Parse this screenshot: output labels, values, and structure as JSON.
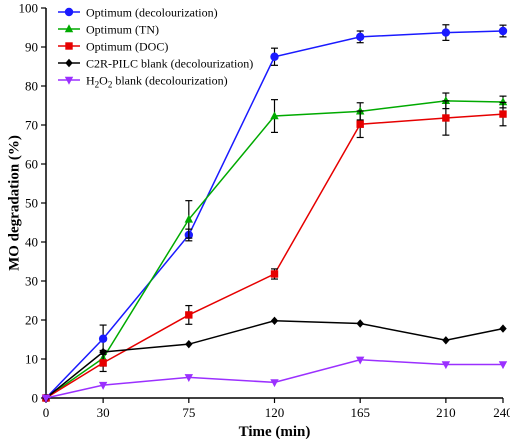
{
  "chart_data": {
    "type": "line",
    "xlabel": "Time (min)",
    "ylabel": "MO degradation (%)",
    "x_ticks": [
      0,
      30,
      75,
      120,
      165,
      210,
      240
    ],
    "y_ticks": [
      0,
      10,
      20,
      30,
      40,
      50,
      60,
      70,
      80,
      90,
      100
    ],
    "xlim": [
      0,
      240
    ],
    "ylim": [
      0,
      100
    ],
    "grid": false,
    "legend_position": "top-left",
    "series": [
      {
        "name": "Optimum (decolourization)",
        "name_sub": "",
        "name_tail": "",
        "color": "#1a1aff",
        "marker": "circle",
        "x": [
          0,
          30,
          75,
          120,
          165,
          210,
          240
        ],
        "y": [
          0,
          15.2,
          41.8,
          87.5,
          92.6,
          93.7,
          94.1
        ],
        "err": [
          0,
          3.5,
          1.5,
          2.2,
          1.5,
          2.0,
          1.5
        ]
      },
      {
        "name": "Optimum (TN)",
        "name_sub": "",
        "name_tail": "",
        "color": "#00aa00",
        "marker": "triangle-up",
        "x": [
          0,
          30,
          75,
          120,
          165,
          210,
          240
        ],
        "y": [
          0,
          10.2,
          45.8,
          72.3,
          73.5,
          76.2,
          75.9
        ],
        "err": [
          0,
          2.0,
          4.8,
          4.2,
          2.2,
          2.0,
          1.5
        ]
      },
      {
        "name": "Optimum (DOC)",
        "name_sub": "",
        "name_tail": "",
        "color": "#e60000",
        "marker": "square",
        "x": [
          0,
          30,
          75,
          120,
          165,
          210,
          240
        ],
        "y": [
          0,
          9.0,
          21.3,
          31.8,
          70.2,
          71.8,
          72.8
        ],
        "err": [
          0,
          2.2,
          2.4,
          1.3,
          3.4,
          4.4,
          3.0
        ]
      },
      {
        "name": "C2R-PILC blank (decolourization)",
        "name_sub": "",
        "name_tail": "",
        "color": "#000000",
        "marker": "diamond",
        "x": [
          0,
          30,
          75,
          120,
          165,
          210,
          240
        ],
        "y": [
          0,
          11.8,
          13.8,
          19.8,
          19.1,
          14.8,
          17.8
        ],
        "err": [
          0,
          0,
          0,
          0,
          0,
          0,
          0
        ]
      },
      {
        "name": "H",
        "name_sub": "2",
        "name_tail": "O₂ blank (decolourization)",
        "color": "#9b30ff",
        "marker": "triangle-down",
        "x": [
          0,
          30,
          75,
          120,
          165,
          210,
          240
        ],
        "y": [
          0,
          3.3,
          5.3,
          4.0,
          9.8,
          8.6,
          8.6
        ],
        "err": [
          0,
          0,
          0,
          0,
          0,
          0,
          0
        ]
      }
    ]
  }
}
